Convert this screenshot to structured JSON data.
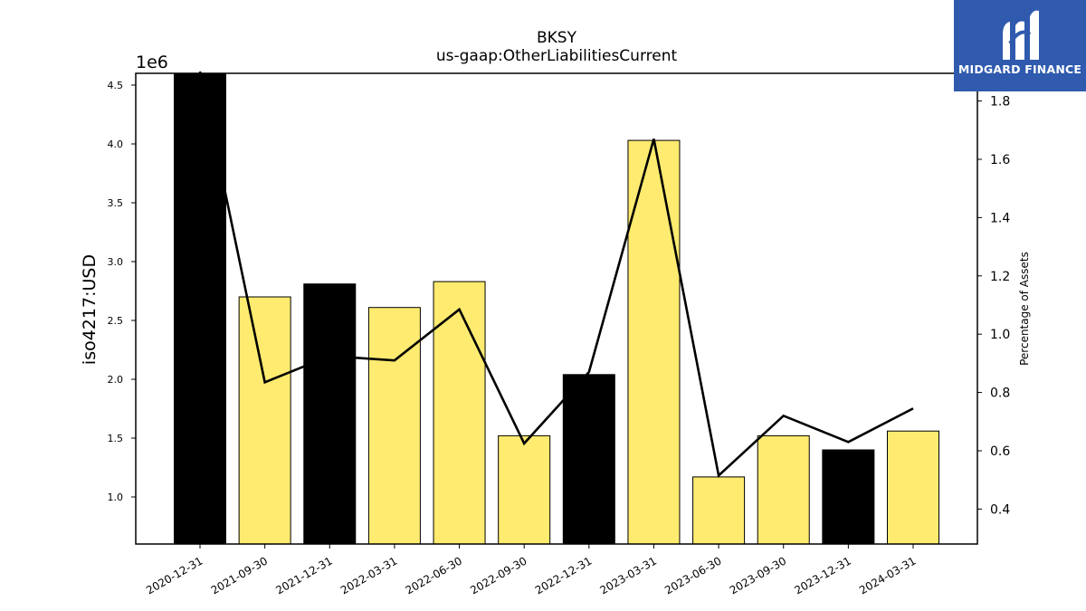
{
  "chart_data": {
    "type": "bar",
    "title": "BKSY",
    "subtitle": "us-gaap:OtherLiabilitiesCurrent",
    "ylabel": "iso4217:USD",
    "y_offset_label": "1e6",
    "y2label": "Percentage of Assets",
    "categories": [
      "2020-12-31",
      "2021-09-30",
      "2021-12-31",
      "2022-03-31",
      "2022-06-30",
      "2022-09-30",
      "2022-12-31",
      "2023-03-31",
      "2023-06-30",
      "2023-09-30",
      "2023-12-31",
      "2024-03-31"
    ],
    "values": [
      4600000,
      2700000,
      2810000,
      2610000,
      2830000,
      1520000,
      2040000,
      4030000,
      1170000,
      1520000,
      1400000,
      1560000
    ],
    "bar_colors": [
      "#000000",
      "#ffeb70",
      "#000000",
      "#ffeb70",
      "#ffeb70",
      "#ffeb70",
      "#000000",
      "#ffeb70",
      "#ffeb70",
      "#ffeb70",
      "#000000",
      "#ffeb70"
    ],
    "ylim": [
      600000,
      4600000
    ],
    "yticks": [
      1.0,
      1.5,
      2.0,
      2.5,
      3.0,
      3.5,
      4.0,
      4.5
    ],
    "y2lim": [
      0.28,
      1.895
    ],
    "y2ticks": [
      0.4,
      0.6,
      0.8,
      1.0,
      1.2,
      1.4,
      1.6,
      1.8
    ],
    "line_series": {
      "name": "Percentage of Assets",
      "values": [
        1.91,
        0.835,
        0.925,
        0.91,
        1.085,
        0.625,
        0.87,
        1.67,
        0.515,
        0.72,
        0.63,
        0.745
      ]
    },
    "grid": false
  },
  "logo": {
    "text": "MIDGARD FINANCE",
    "bg": "#2f5aae"
  }
}
